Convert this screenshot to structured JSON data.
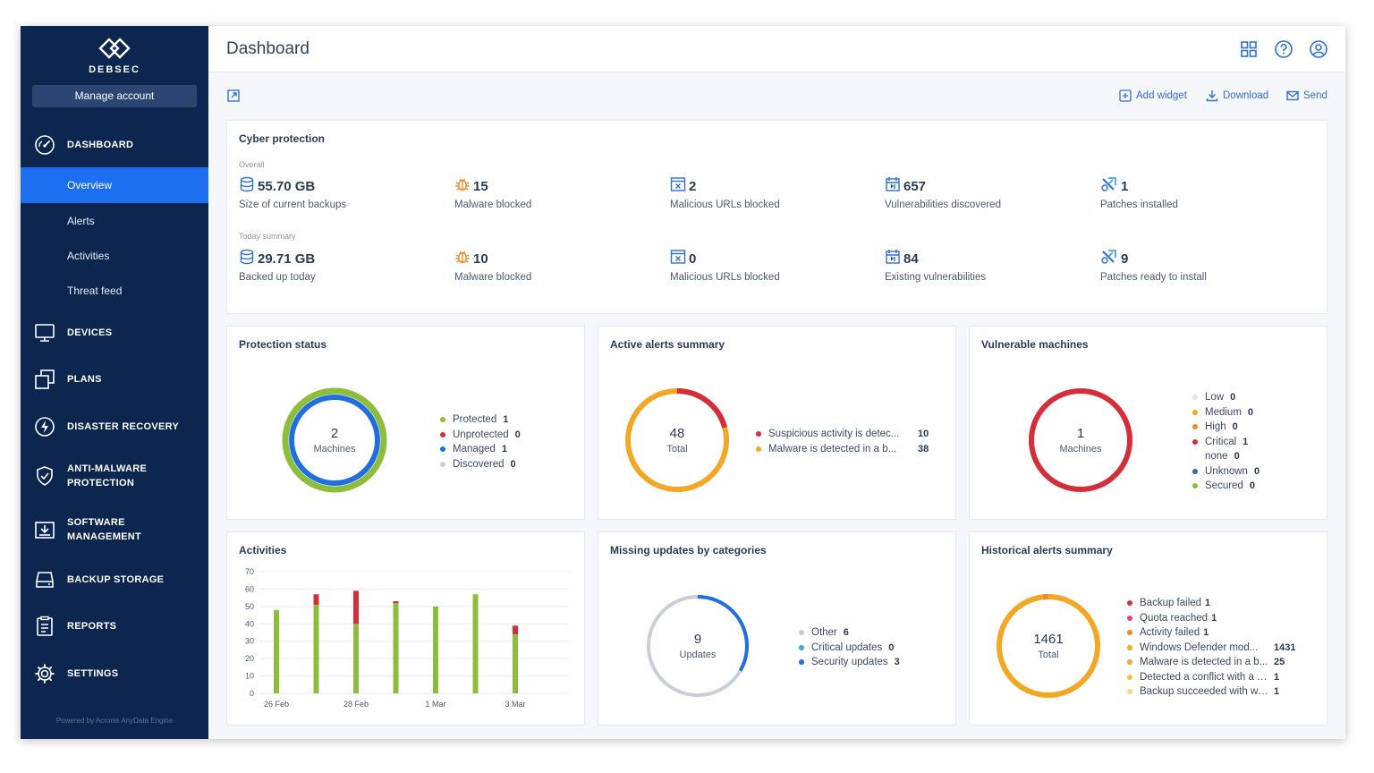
{
  "brand": {
    "logo_text": "DEBSEC"
  },
  "sidebar": {
    "manage_account": "Manage account",
    "items": [
      {
        "label": "DASHBOARD",
        "icon": "gauge-icon"
      },
      {
        "label": "DEVICES",
        "icon": "monitor-icon"
      },
      {
        "label": "PLANS",
        "icon": "plans-icon"
      },
      {
        "label": "DISASTER RECOVERY",
        "icon": "bolt-icon"
      },
      {
        "label_line1": "ANTI-MALWARE",
        "label_line2": "PROTECTION",
        "icon": "shield-icon"
      },
      {
        "label_line1": "SOFTWARE",
        "label_line2": "MANAGEMENT",
        "icon": "software-icon"
      },
      {
        "label": "BACKUP STORAGE",
        "icon": "storage-icon"
      },
      {
        "label": "REPORTS",
        "icon": "reports-icon"
      },
      {
        "label": "SETTINGS",
        "icon": "gear-icon"
      }
    ],
    "sub_items": [
      "Overview",
      "Alerts",
      "Activities",
      "Threat feed"
    ],
    "powered": "Powered by Acronis AnyData Engine"
  },
  "header": {
    "title": "Dashboard"
  },
  "toolbar": {
    "add_widget": "Add widget",
    "download": "Download",
    "send": "Send"
  },
  "cyber": {
    "title": "Cyber protection",
    "overall_label": "Overall",
    "today_label": "Today summary",
    "overall": [
      {
        "value": "55.70 GB",
        "label": "Size of current backups"
      },
      {
        "value": "15",
        "label": "Malware blocked"
      },
      {
        "value": "2",
        "label": "Malicious URLs blocked"
      },
      {
        "value": "657",
        "label": "Vulnerabilities discovered"
      },
      {
        "value": "1",
        "label": "Patches installed"
      }
    ],
    "today": [
      {
        "value": "29.71 GB",
        "label": "Backed up today"
      },
      {
        "value": "10",
        "label": "Malware blocked"
      },
      {
        "value": "0",
        "label": "Malicious URLs blocked"
      },
      {
        "value": "84",
        "label": "Existing vulnerabilities"
      },
      {
        "value": "9",
        "label": "Patches ready to install"
      }
    ]
  },
  "protection": {
    "title": "Protection status",
    "total": "2",
    "unit": "Machines",
    "legend": [
      {
        "label": "Protected",
        "value": "1",
        "color": "#8cbe3c"
      },
      {
        "label": "Unprotected",
        "value": "0",
        "color": "#d42e3a"
      },
      {
        "label": "Managed",
        "value": "1",
        "color": "#1f6fe0"
      },
      {
        "label": "Discovered",
        "value": "0",
        "color": "#c9cfd8"
      }
    ]
  },
  "alerts": {
    "title": "Active alerts summary",
    "total": "48",
    "unit": "Total",
    "legend": [
      {
        "label": "Suspicious activity is detec...",
        "value": "10",
        "color": "#d42e3a"
      },
      {
        "label": "Malware is detected in a b...",
        "value": "38",
        "color": "#f5a623"
      }
    ]
  },
  "vulnerable": {
    "title": "Vulnerable machines",
    "total": "1",
    "unit": "Machines",
    "legend": [
      {
        "label": "Low",
        "value": "0",
        "color": "#dfe3ea"
      },
      {
        "label": "Medium",
        "value": "0",
        "color": "#f5a623"
      },
      {
        "label": "High",
        "value": "0",
        "color": "#f0882a"
      },
      {
        "label": "Critical",
        "value": "1",
        "color": "#d42e3a"
      },
      {
        "label": "none",
        "value": "0",
        "color": ""
      },
      {
        "label": "Unknown",
        "value": "0",
        "color": "#3a62b8"
      },
      {
        "label": "Secured",
        "value": "0",
        "color": "#8cbe3c"
      }
    ]
  },
  "activities": {
    "title": "Activities"
  },
  "chart_data": {
    "type": "bar",
    "stacked": true,
    "x": [
      "26 Feb",
      "27 Feb",
      "28 Feb",
      "29 Feb",
      "1 Mar",
      "2 Mar",
      "3 Mar"
    ],
    "tick_labels": [
      "26 Feb",
      "28 Feb",
      "1 Mar",
      "3 Mar"
    ],
    "ylim": [
      0,
      70
    ],
    "yticks": [
      0,
      10,
      20,
      30,
      40,
      50,
      60,
      70
    ],
    "series": [
      {
        "color": "#8cbe3c",
        "values": [
          48,
          51,
          40,
          52,
          50,
          57,
          34
        ]
      },
      {
        "color": "#d42e3a",
        "values": [
          0,
          6,
          19,
          1,
          0,
          0,
          5
        ]
      }
    ],
    "grid": true
  },
  "missing": {
    "title": "Missing updates by categories",
    "total": "9",
    "unit": "Updates",
    "legend": [
      {
        "label": "Other",
        "value": "6",
        "color": "#c9cfd8"
      },
      {
        "label": "Critical updates",
        "value": "0",
        "color": "#3fa7e8"
      },
      {
        "label": "Security updates",
        "value": "3",
        "color": "#1f6fe0"
      }
    ]
  },
  "historical": {
    "title": "Historical alerts summary",
    "total": "1461",
    "unit": "Total",
    "legend": [
      {
        "label": "Backup failed",
        "value": "1",
        "color": "#d42e3a"
      },
      {
        "label": "Quota reached",
        "value": "1",
        "color": "#e0457b"
      },
      {
        "label": "Activity failed",
        "value": "1",
        "color": "#f0882a"
      },
      {
        "label": "Windows Defender mod...",
        "value": "1431",
        "color": "#f5a623"
      },
      {
        "label": "Malware is detected in a b...",
        "value": "25",
        "color": "#f2a33a"
      },
      {
        "label": "Detected a conflict with a se...",
        "value": "1",
        "color": "#f7c34a"
      },
      {
        "label": "Backup succeeded with war...",
        "value": "1",
        "color": "#f9d58a"
      }
    ]
  }
}
